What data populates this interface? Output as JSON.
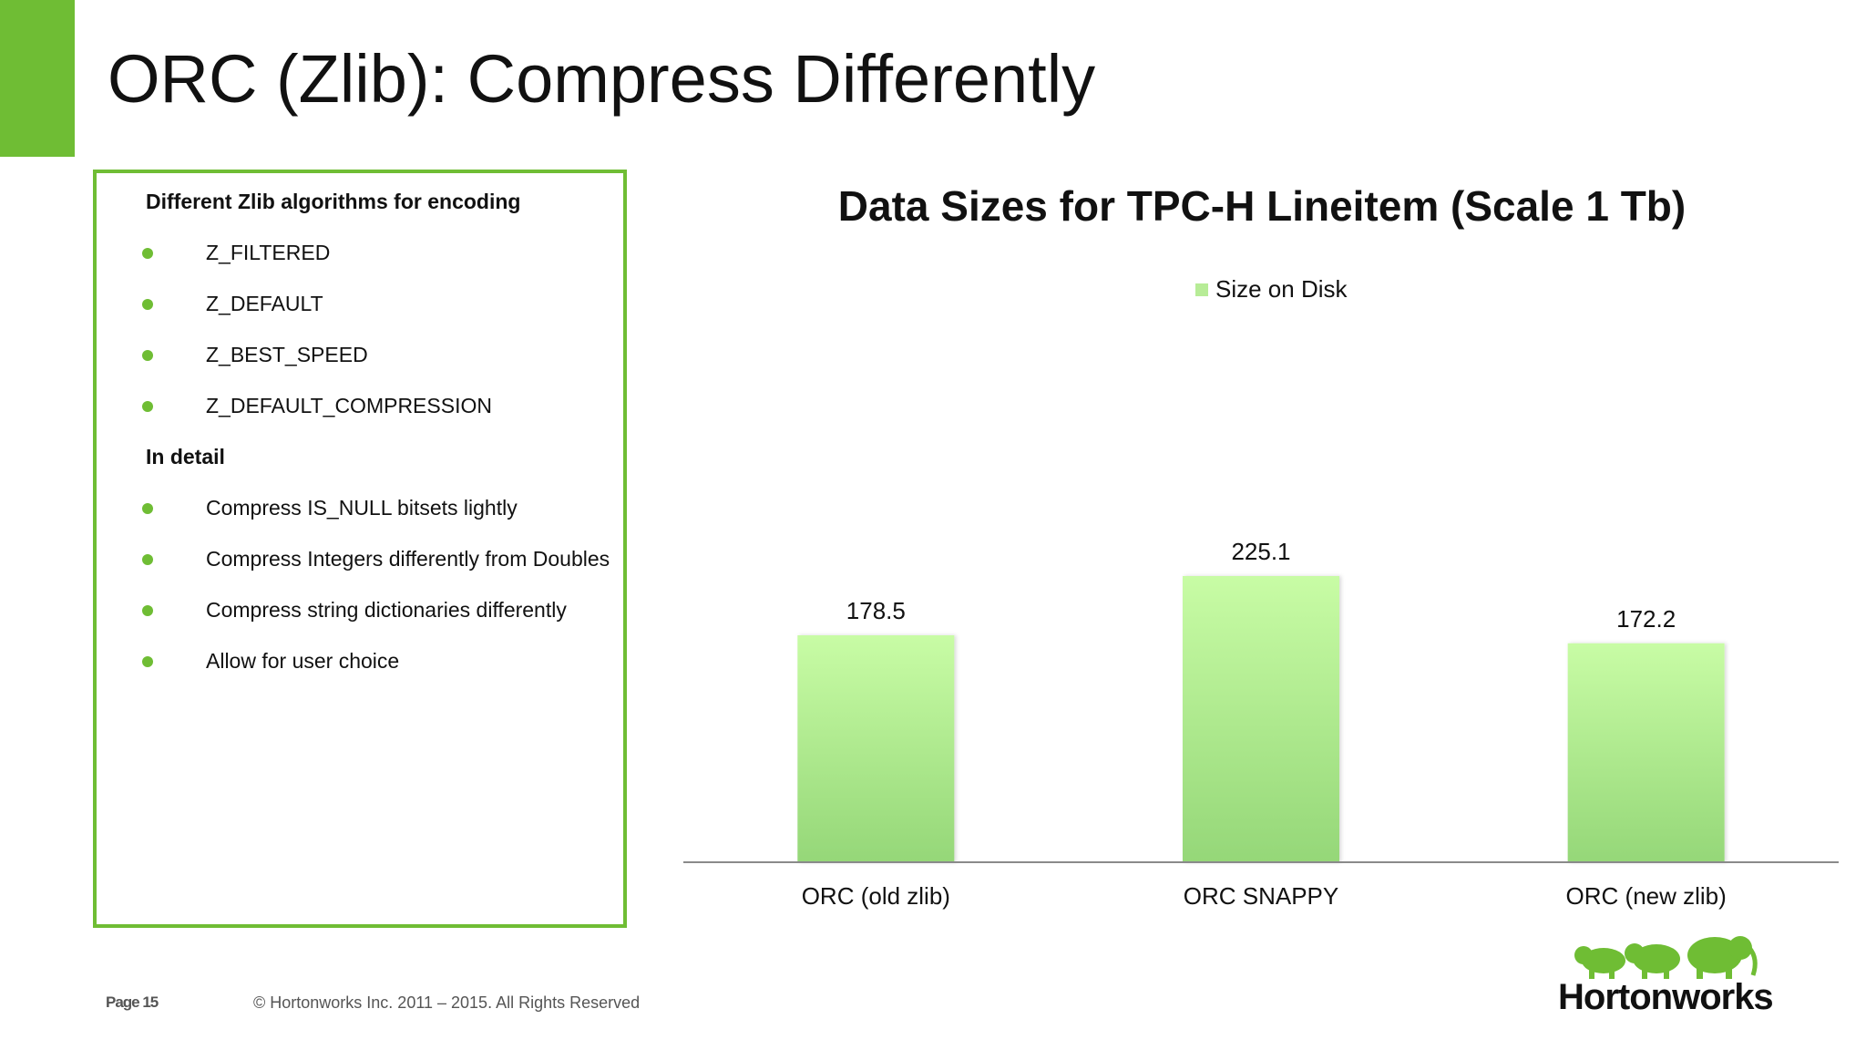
{
  "slide": {
    "title": "ORC (Zlib): Compress Differently"
  },
  "left_panel": {
    "heading1": "Different Zlib algorithms for encoding",
    "list1": [
      "Z_FILTERED",
      "Z_DEFAULT",
      "Z_BEST_SPEED",
      "Z_DEFAULT_COMPRESSION"
    ],
    "heading2": "In detail",
    "list2": [
      "Compress IS_NULL bitsets lightly",
      "Compress Integers differently from Doubles",
      "Compress string dictionaries differently",
      "Allow for user choice"
    ]
  },
  "chart_data": {
    "type": "bar",
    "title": "Data Sizes for TPC-H Lineitem (Scale 1 Tb)",
    "categories": [
      "ORC (old zlib)",
      "ORC SNAPPY",
      "ORC (new zlib)"
    ],
    "series": [
      {
        "name": "Size on Disk",
        "values": [
          178.5,
          225.1,
          172.2
        ]
      }
    ],
    "data_labels": [
      "178.5",
      "225.1",
      "172.2"
    ],
    "xlabel": "",
    "ylabel": "",
    "ylim": [
      0,
      225.1
    ],
    "grid": false,
    "legend_position": "top",
    "colors": {
      "bar_top": "#c8fca5",
      "bar_bottom": "#95d778",
      "axis": "#8a8a8a"
    }
  },
  "footer": {
    "page": "Page 15",
    "copyright": "© Hortonworks Inc. 2011 – 2015. All Rights Reserved"
  },
  "logo": {
    "text": "Hortonworks",
    "icon": "elephants-icon"
  },
  "colors": {
    "accent": "#6fbd34"
  }
}
